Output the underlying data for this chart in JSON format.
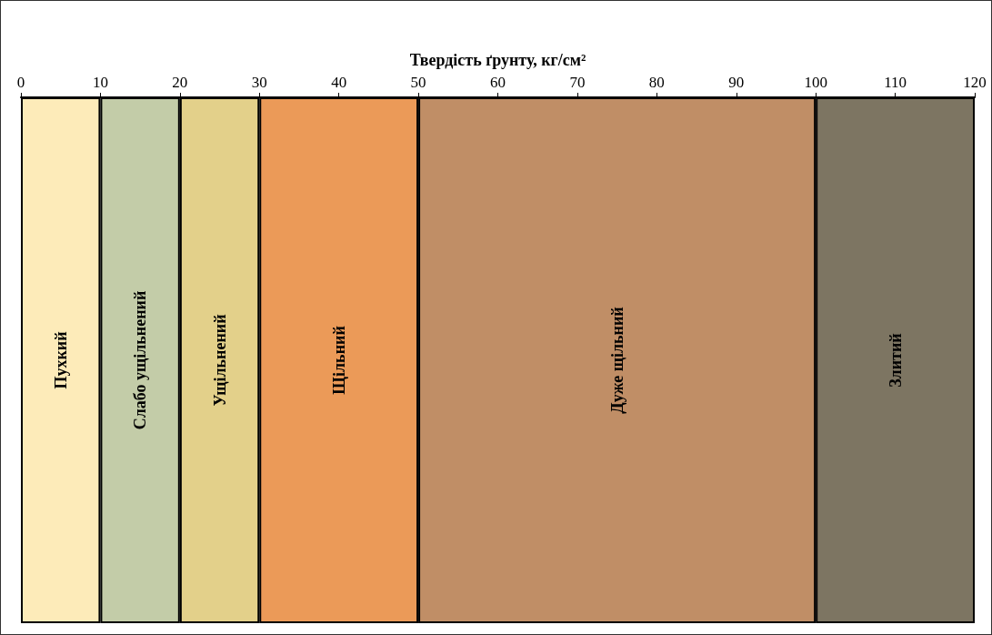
{
  "chart_data": {
    "type": "bar",
    "orientation": "horizontal",
    "stacked": true,
    "xlabel": "Твердість ґрунту, кг/см²",
    "categories": [
      null
    ],
    "series": [
      {
        "name": "Пухкий",
        "color": "#fdebb9",
        "values": [
          10
        ]
      },
      {
        "name": "Слабо ущільнений",
        "color": "#c3cca8",
        "values": [
          10
        ]
      },
      {
        "name": "Ущільнений",
        "color": "#e3d08a",
        "values": [
          10
        ]
      },
      {
        "name": "Щільний",
        "color": "#eb9a58",
        "values": [
          20
        ]
      },
      {
        "name": "Дуже щільний",
        "color": "#c08e66",
        "values": [
          50
        ]
      },
      {
        "name": "Злитий",
        "color": "#7d7562",
        "values": [
          20
        ]
      }
    ],
    "xlim": [
      0,
      120
    ],
    "xticks": [
      0,
      10,
      20,
      30,
      40,
      50,
      60,
      70,
      80,
      90,
      100,
      110,
      120
    ]
  }
}
